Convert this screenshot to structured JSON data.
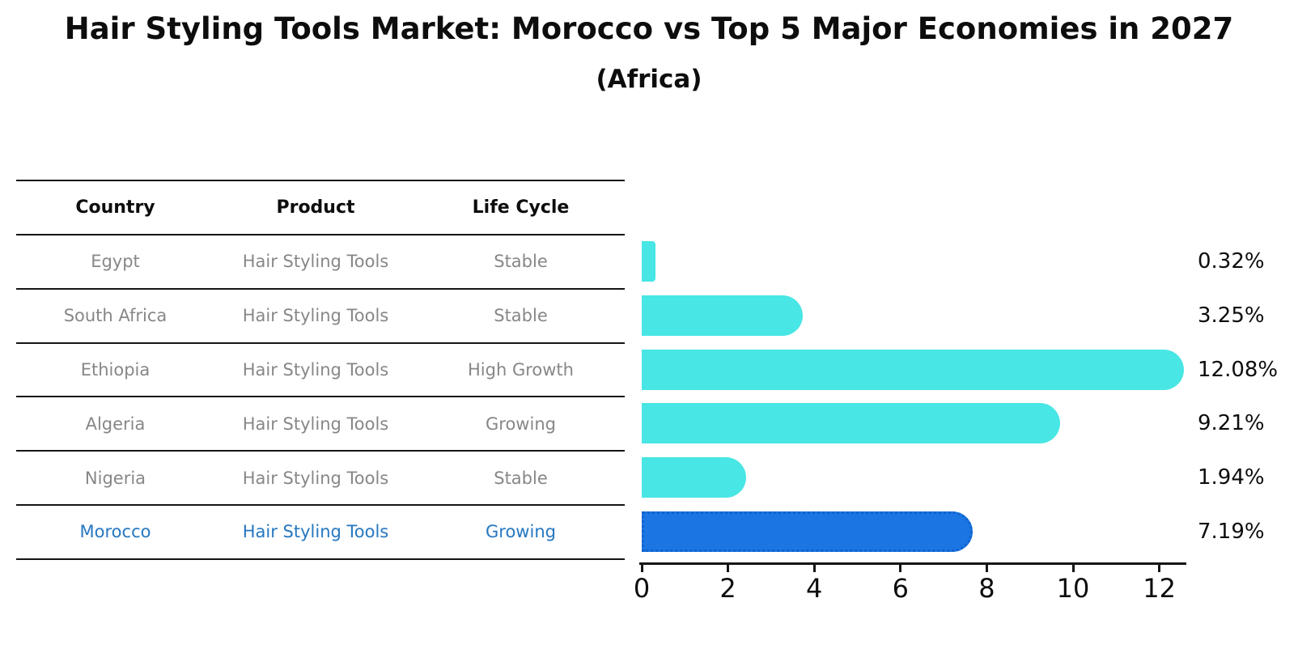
{
  "title": "Hair Styling Tools Market: Morocco vs Top 5 Major Economies in 2027",
  "subtitle": "(Africa)",
  "table": {
    "headers": [
      "Country",
      "Product",
      "Life Cycle"
    ],
    "rows": [
      {
        "country": "Egypt",
        "product": "Hair Styling Tools",
        "life_cycle": "Stable",
        "highlighted": false
      },
      {
        "country": "South Africa",
        "product": "Hair Styling Tools",
        "life_cycle": "Stable",
        "highlighted": false
      },
      {
        "country": "Ethiopia",
        "product": "Hair Styling Tools",
        "life_cycle": "High Growth",
        "highlighted": false
      },
      {
        "country": "Algeria",
        "product": "Hair Styling Tools",
        "life_cycle": "Growing",
        "highlighted": false
      },
      {
        "country": "Nigeria",
        "product": "Hair Styling Tools",
        "life_cycle": "Stable",
        "highlighted": false
      },
      {
        "country": "Morocco",
        "product": "Hair Styling Tools",
        "life_cycle": "Growing",
        "highlighted": true
      }
    ]
  },
  "chart_data": {
    "type": "bar",
    "orientation": "horizontal",
    "title": "Hair Styling Tools Market: Morocco vs Top 5 Major Economies in 2027 (Africa)",
    "categories": [
      "Egypt",
      "South Africa",
      "Ethiopia",
      "Algeria",
      "Nigeria",
      "Morocco"
    ],
    "values": [
      0.32,
      3.25,
      12.08,
      9.21,
      1.94,
      7.19
    ],
    "value_labels": [
      "0.32%",
      "3.25%",
      "12.08%",
      "9.21%",
      "1.94%",
      "7.19%"
    ],
    "highlight_index": 5,
    "xticks": [
      0,
      2,
      4,
      6,
      8,
      10,
      12
    ],
    "xlim": [
      0,
      12.68
    ],
    "grid": false,
    "legend": null,
    "bar_color": "#48e6e4",
    "highlight_bar_color": "#1b75e2",
    "highlight_text_color": "#2878c0",
    "table_text_color": "#878787",
    "axis_color": "#151515"
  }
}
